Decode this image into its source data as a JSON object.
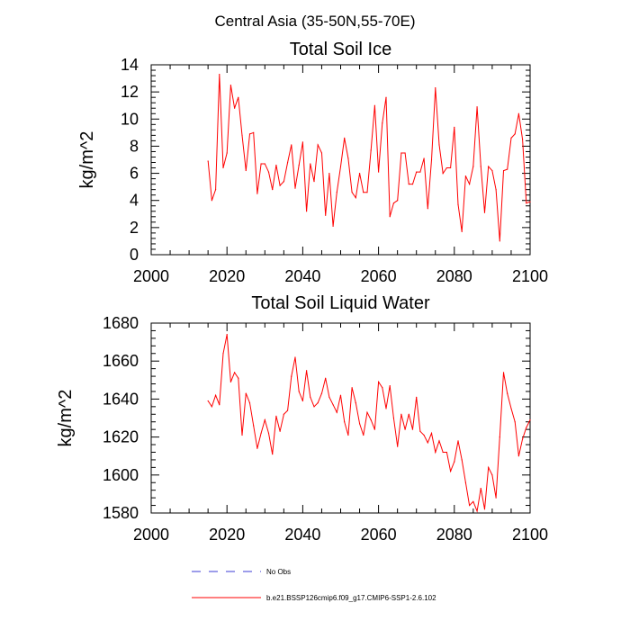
{
  "suptitle": "Central Asia (35-50N,55-70E)",
  "colors": {
    "model": "#ff0000",
    "obs": "#3b3bd6",
    "axis": "#000000"
  },
  "legend": {
    "obs_label": "No Obs",
    "model_label": "b.e21.BSSP126cmip6.f09_g17.CMIP6-SSP1-2.6.102"
  },
  "chart_data": [
    {
      "type": "line",
      "title": "Total Soil Ice",
      "xlabel": "",
      "ylabel": "kg/m^2",
      "xlim": [
        2000,
        2100
      ],
      "ylim": [
        0,
        14
      ],
      "xticks": [
        2000,
        2020,
        2040,
        2060,
        2080,
        2100
      ],
      "yticks": [
        0,
        2,
        4,
        6,
        8,
        10,
        12,
        14
      ],
      "grid": false,
      "series": [
        {
          "name": "b.e21.BSSP126cmip6.f09_g17.CMIP6-SSP1-2.6.102",
          "x": [
            2015,
            2016,
            2017,
            2018,
            2019,
            2020,
            2021,
            2022,
            2023,
            2024,
            2025,
            2026,
            2027,
            2028,
            2029,
            2030,
            2031,
            2032,
            2033,
            2034,
            2035,
            2036,
            2037,
            2038,
            2039,
            2040,
            2041,
            2042,
            2043,
            2044,
            2045,
            2046,
            2047,
            2048,
            2049,
            2050,
            2051,
            2052,
            2053,
            2054,
            2055,
            2056,
            2057,
            2058,
            2059,
            2060,
            2061,
            2062,
            2063,
            2064,
            2065,
            2066,
            2067,
            2068,
            2069,
            2070,
            2071,
            2072,
            2073,
            2074,
            2075,
            2076,
            2077,
            2078,
            2079,
            2080,
            2081,
            2082,
            2083,
            2084,
            2085,
            2086,
            2087,
            2088,
            2089,
            2090,
            2091,
            2092,
            2093,
            2094,
            2095,
            2096,
            2097,
            2098,
            2099,
            2100
          ],
          "y": [
            6.9,
            4.0,
            4.8,
            13.3,
            6.4,
            7.5,
            12.5,
            10.8,
            11.6,
            8.8,
            6.2,
            8.9,
            9.0,
            4.5,
            6.7,
            6.7,
            6.1,
            4.8,
            6.6,
            5.1,
            5.4,
            6.8,
            8.1,
            4.9,
            6.6,
            8.3,
            3.2,
            6.7,
            5.4,
            8.1,
            7.5,
            2.9,
            6.0,
            2.1,
            4.6,
            6.5,
            8.6,
            7.1,
            4.6,
            4.2,
            6.0,
            4.6,
            4.6,
            7.7,
            11.0,
            6.1,
            9.7,
            11.6,
            2.8,
            3.8,
            4.0,
            7.5,
            7.5,
            5.2,
            5.2,
            6.1,
            6.1,
            7.1,
            3.4,
            7.0,
            12.3,
            8.1,
            6.0,
            6.4,
            6.4,
            9.4,
            3.7,
            1.7,
            5.8,
            5.2,
            6.5,
            10.9,
            6.5,
            3.1,
            6.5,
            6.2,
            4.8,
            1.0,
            6.2,
            6.3,
            8.6,
            8.9,
            10.4,
            8.5,
            3.8,
            3.9
          ]
        }
      ]
    },
    {
      "type": "line",
      "title": "Total Soil Liquid Water",
      "xlabel": "",
      "ylabel": "kg/m^2",
      "xlim": [
        2000,
        2100
      ],
      "ylim": [
        1580,
        1680
      ],
      "xticks": [
        2000,
        2020,
        2040,
        2060,
        2080,
        2100
      ],
      "yticks": [
        1580,
        1600,
        1620,
        1640,
        1660,
        1680
      ],
      "grid": false,
      "series": [
        {
          "name": "b.e21.BSSP126cmip6.f09_g17.CMIP6-SSP1-2.6.102",
          "x": [
            2015,
            2016,
            2017,
            2018,
            2019,
            2020,
            2021,
            2022,
            2023,
            2024,
            2025,
            2026,
            2027,
            2028,
            2029,
            2030,
            2031,
            2032,
            2033,
            2034,
            2035,
            2036,
            2037,
            2038,
            2039,
            2040,
            2041,
            2042,
            2043,
            2044,
            2045,
            2046,
            2047,
            2048,
            2049,
            2050,
            2051,
            2052,
            2053,
            2054,
            2055,
            2056,
            2057,
            2058,
            2059,
            2060,
            2061,
            2062,
            2063,
            2064,
            2065,
            2066,
            2067,
            2068,
            2069,
            2070,
            2071,
            2072,
            2073,
            2074,
            2075,
            2076,
            2077,
            2078,
            2079,
            2080,
            2081,
            2082,
            2083,
            2084,
            2085,
            2086,
            2087,
            2088,
            2089,
            2090,
            2091,
            2092,
            2093,
            2094,
            2095,
            2096,
            2097,
            2098,
            2099,
            2100
          ],
          "y": [
            1639,
            1636,
            1642,
            1637,
            1664,
            1674,
            1649,
            1654,
            1651,
            1621,
            1643,
            1638,
            1626,
            1614,
            1622,
            1629,
            1622,
            1611,
            1631,
            1623,
            1632,
            1634,
            1652,
            1662,
            1644,
            1639,
            1655,
            1641,
            1636,
            1638,
            1643,
            1651,
            1641,
            1637,
            1633,
            1642,
            1628,
            1621,
            1646,
            1638,
            1627,
            1621,
            1633,
            1629,
            1624,
            1649,
            1646,
            1635,
            1647,
            1630,
            1615,
            1632,
            1624,
            1632,
            1624,
            1641,
            1623,
            1621,
            1617,
            1622,
            1612,
            1618,
            1612,
            1612,
            1602,
            1607,
            1618,
            1608,
            1596,
            1584,
            1586,
            1581,
            1593,
            1582,
            1604,
            1600,
            1588,
            1620,
            1654,
            1643,
            1635,
            1628,
            1610,
            1619,
            1625,
            1629
          ]
        }
      ]
    }
  ]
}
